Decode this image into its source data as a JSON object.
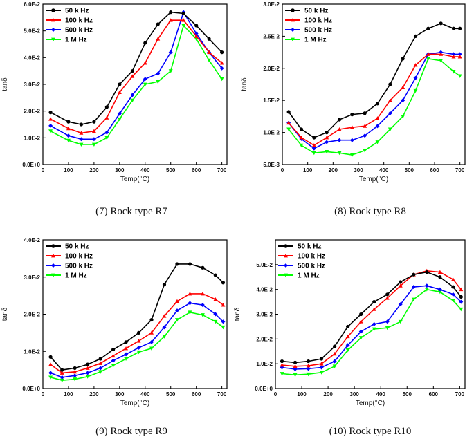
{
  "chart_data": [
    {
      "type": "line",
      "caption": "(7) Rock type R7",
      "xlabel": "Temp(°C)",
      "ylabel": "tanδ",
      "xlim": [
        0,
        720
      ],
      "ylim": [
        0,
        0.06
      ],
      "x_ticks": [
        0,
        100,
        200,
        300,
        400,
        500,
        600,
        700
      ],
      "x_tick_labels": [
        "0",
        "100",
        "200",
        "300",
        "400",
        "500",
        "600",
        "700"
      ],
      "y_ticks": [
        0,
        0.01,
        0.02,
        0.03,
        0.04,
        0.05,
        0.06
      ],
      "y_tick_labels": [
        "0.0E+0",
        "1.0E-2",
        "2.0E-2",
        "3.0E-2",
        "4.0E-2",
        "5.0E-2",
        "6.0E-2"
      ],
      "x": [
        30,
        100,
        150,
        200,
        250,
        300,
        350,
        400,
        450,
        500,
        550,
        600,
        650,
        700
      ],
      "series": [
        {
          "name": "50 k Hz",
          "color": "#000000",
          "marker": "circle",
          "values": [
            0.0195,
            0.016,
            0.015,
            0.016,
            0.0215,
            0.03,
            0.035,
            0.0455,
            0.0525,
            0.057,
            0.0565,
            0.052,
            0.047,
            0.042
          ]
        },
        {
          "name": "100 k Hz",
          "color": "#ff0000",
          "marker": "triangle",
          "values": [
            0.017,
            0.0135,
            0.0118,
            0.0125,
            0.0175,
            0.027,
            0.033,
            0.038,
            0.047,
            0.054,
            0.054,
            0.048,
            0.042,
            0.038
          ]
        },
        {
          "name": "500 k Hz",
          "color": "#0000ff",
          "marker": "diamond",
          "values": [
            0.0145,
            0.0108,
            0.0095,
            0.0095,
            0.012,
            0.019,
            0.026,
            0.032,
            0.034,
            0.042,
            0.057,
            0.049,
            0.042,
            0.036
          ]
        },
        {
          "name": "1 M Hz",
          "color": "#00ff00",
          "marker": "triangle-down",
          "values": [
            0.0125,
            0.009,
            0.0075,
            0.0075,
            0.01,
            0.017,
            0.024,
            0.03,
            0.031,
            0.035,
            0.052,
            0.047,
            0.039,
            0.032
          ]
        }
      ]
    },
    {
      "type": "line",
      "caption": "(8) Rock type R8",
      "xlabel": "Temp(°C)",
      "ylabel": "tanδ",
      "xlim": [
        0,
        720
      ],
      "ylim": [
        0.005,
        0.03
      ],
      "x_ticks": [
        0,
        100,
        200,
        300,
        400,
        500,
        600,
        700
      ],
      "x_tick_labels": [
        "0",
        "100",
        "200",
        "300",
        "400",
        "500",
        "600",
        "700"
      ],
      "y_ticks": [
        0.005,
        0.01,
        0.015,
        0.02,
        0.025,
        0.03
      ],
      "y_tick_labels": [
        "5.0E-3",
        "1.0E-2",
        "1.5E-2",
        "2.0E-2",
        "2.5E-2",
        "3.0E-2"
      ],
      "x": [
        25,
        75,
        125,
        175,
        225,
        275,
        325,
        375,
        425,
        475,
        525,
        575,
        625,
        675,
        700
      ],
      "series": [
        {
          "name": "50 k Hz",
          "color": "#000000",
          "marker": "circle",
          "values": [
            0.0132,
            0.0105,
            0.0092,
            0.01,
            0.012,
            0.0128,
            0.013,
            0.0145,
            0.0175,
            0.0215,
            0.025,
            0.0262,
            0.027,
            0.0262,
            0.0262
          ]
        },
        {
          "name": "100 k Hz",
          "color": "#ff0000",
          "marker": "triangle",
          "values": [
            0.0115,
            0.0092,
            0.008,
            0.0092,
            0.0105,
            0.0108,
            0.011,
            0.0122,
            0.015,
            0.017,
            0.0205,
            0.0222,
            0.0222,
            0.0218,
            0.0218
          ]
        },
        {
          "name": "500 k Hz",
          "color": "#0000ff",
          "marker": "diamond",
          "values": [
            0.0115,
            0.009,
            0.0075,
            0.0085,
            0.0088,
            0.0088,
            0.0095,
            0.011,
            0.013,
            0.015,
            0.0185,
            0.0222,
            0.0225,
            0.0222,
            0.0222
          ]
        },
        {
          "name": "1 M Hz",
          "color": "#00ff00",
          "marker": "triangle-down",
          "values": [
            0.0105,
            0.008,
            0.0068,
            0.007,
            0.0068,
            0.0065,
            0.0072,
            0.0085,
            0.0105,
            0.0125,
            0.0165,
            0.0215,
            0.0212,
            0.0195,
            0.0188
          ]
        }
      ]
    },
    {
      "type": "line",
      "caption": "(9) Rock type R9",
      "xlabel": "Temp(°C)",
      "ylabel": "tanδ",
      "xlim": [
        0,
        720
      ],
      "ylim": [
        0,
        0.04
      ],
      "x_ticks": [
        0,
        100,
        200,
        300,
        400,
        500,
        600,
        700
      ],
      "x_tick_labels": [
        "0",
        "100",
        "200",
        "300",
        "400",
        "500",
        "600",
        "700"
      ],
      "y_ticks": [
        0,
        0.01,
        0.02,
        0.03,
        0.04
      ],
      "y_tick_labels": [
        "0.0E+0",
        "1.0E-2",
        "2.0E-2",
        "3.0E-2",
        "4.0E-2"
      ],
      "x": [
        30,
        75,
        125,
        175,
        225,
        275,
        325,
        375,
        425,
        475,
        525,
        575,
        625,
        675,
        705
      ],
      "series": [
        {
          "name": "50 k Hz",
          "color": "#000000",
          "marker": "circle",
          "values": [
            0.0085,
            0.005,
            0.0055,
            0.0065,
            0.008,
            0.0105,
            0.0125,
            0.015,
            0.0185,
            0.028,
            0.0335,
            0.0335,
            0.0325,
            0.0305,
            0.0285
          ]
        },
        {
          "name": "100 k Hz",
          "color": "#ff0000",
          "marker": "triangle",
          "values": [
            0.0065,
            0.0042,
            0.0045,
            0.0055,
            0.0068,
            0.0088,
            0.0108,
            0.0128,
            0.015,
            0.0195,
            0.0235,
            0.0255,
            0.0255,
            0.024,
            0.0225
          ]
        },
        {
          "name": "500 k Hz",
          "color": "#0000ff",
          "marker": "diamond",
          "values": [
            0.0042,
            0.003,
            0.0035,
            0.0042,
            0.0055,
            0.0075,
            0.0092,
            0.011,
            0.0125,
            0.0165,
            0.021,
            0.023,
            0.0225,
            0.02,
            0.018
          ]
        },
        {
          "name": "1 M Hz",
          "color": "#00ff00",
          "marker": "triangle-down",
          "values": [
            0.003,
            0.0022,
            0.0025,
            0.0032,
            0.0045,
            0.0062,
            0.008,
            0.0098,
            0.0108,
            0.014,
            0.0185,
            0.0205,
            0.0198,
            0.018,
            0.0165
          ]
        }
      ]
    },
    {
      "type": "line",
      "caption": "(10) Rock type R10",
      "xlabel": "Temp(°C)",
      "ylabel": "tanδ",
      "xlim": [
        0,
        720
      ],
      "ylim": [
        0,
        0.06
      ],
      "x_ticks": [
        0,
        100,
        200,
        300,
        400,
        500,
        600,
        700
      ],
      "x_tick_labels": [
        "0",
        "100",
        "200",
        "300",
        "400",
        "500",
        "600",
        "700"
      ],
      "y_ticks": [
        0,
        0.01,
        0.02,
        0.03,
        0.04,
        0.05
      ],
      "y_tick_labels": [
        "0.0E+0",
        "1.0E-2",
        "2.0E-2",
        "3.0E-2",
        "4.0E-2",
        "5.0E-2"
      ],
      "x": [
        25,
        75,
        125,
        175,
        225,
        275,
        325,
        375,
        425,
        475,
        525,
        575,
        625,
        675,
        705
      ],
      "series": [
        {
          "name": "50 k Hz",
          "color": "#000000",
          "marker": "circle",
          "values": [
            0.011,
            0.0105,
            0.011,
            0.012,
            0.017,
            0.025,
            0.03,
            0.035,
            0.038,
            0.043,
            0.046,
            0.047,
            0.045,
            0.041,
            0.037
          ]
        },
        {
          "name": "100 k Hz",
          "color": "#ff0000",
          "marker": "triangle",
          "values": [
            0.0095,
            0.009,
            0.0092,
            0.01,
            0.014,
            0.021,
            0.027,
            0.032,
            0.0365,
            0.0415,
            0.046,
            0.0475,
            0.047,
            0.044,
            0.04
          ]
        },
        {
          "name": "500 k Hz",
          "color": "#0000ff",
          "marker": "diamond",
          "values": [
            0.0085,
            0.0078,
            0.008,
            0.0085,
            0.011,
            0.0175,
            0.023,
            0.026,
            0.027,
            0.034,
            0.041,
            0.0415,
            0.04,
            0.038,
            0.035
          ]
        },
        {
          "name": "1 M Hz",
          "color": "#00ff00",
          "marker": "triangle-down",
          "values": [
            0.006,
            0.0055,
            0.0058,
            0.0065,
            0.009,
            0.0155,
            0.0205,
            0.024,
            0.0245,
            0.027,
            0.036,
            0.04,
            0.039,
            0.0355,
            0.032
          ]
        }
      ]
    }
  ]
}
